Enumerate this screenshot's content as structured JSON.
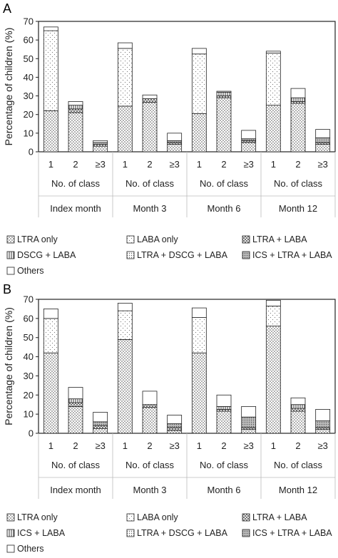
{
  "chart_data": [
    {
      "panel": "A",
      "type": "bar",
      "stacked": true,
      "ylabel": "Percentage of children (%)",
      "ylim": [
        0,
        70
      ],
      "yticks": [
        0,
        10,
        20,
        30,
        40,
        50,
        60,
        70
      ],
      "grid": false,
      "categories": [
        "1",
        "2",
        "≥3",
        "1",
        "2",
        "≥3",
        "1",
        "2",
        "≥3",
        "1",
        "2",
        "≥3"
      ],
      "category_axis_label": "No. of class",
      "groups": [
        "Index month",
        "Month 3",
        "Month 6",
        "Month 12"
      ],
      "legend_placement": "bottom",
      "series": [
        {
          "name": "LTRA only",
          "values": [
            22,
            21,
            3,
            24.5,
            26.5,
            4,
            20.5,
            29,
            5,
            25,
            26,
            4
          ],
          "pattern": "dots"
        },
        {
          "name": "LABA only",
          "values": [
            43,
            0,
            0,
            31,
            0,
            0,
            32,
            0,
            0,
            28,
            0,
            0
          ],
          "pattern": "sparse"
        },
        {
          "name": "LTRA + LABA",
          "values": [
            0,
            2,
            1,
            0,
            2,
            1,
            0,
            1,
            1,
            0,
            1,
            1
          ],
          "pattern": "cross"
        },
        {
          "name": "DSCG + LABA",
          "values": [
            0,
            2,
            0,
            0,
            0,
            0,
            0,
            2,
            0,
            0,
            2,
            0
          ],
          "pattern": "vlines"
        },
        {
          "name": "LTRA + DSCG + LABA",
          "values": [
            0,
            0,
            0,
            0,
            0,
            0,
            0,
            0,
            0,
            0,
            0,
            0
          ],
          "pattern": "fine"
        },
        {
          "name": "ICS + LTRA + LABA",
          "values": [
            0,
            0,
            1,
            0,
            0,
            1,
            0,
            0,
            1,
            0,
            0,
            2.5
          ],
          "pattern": "fine-grey"
        },
        {
          "name": "Others",
          "values": [
            2,
            2,
            1,
            3,
            2,
            4,
            3,
            0.5,
            4.5,
            1,
            5,
            4.5
          ],
          "pattern": "white"
        }
      ]
    },
    {
      "panel": "B",
      "type": "bar",
      "stacked": true,
      "ylabel": "Percentage of children (%)",
      "ylim": [
        0,
        70
      ],
      "yticks": [
        0,
        10,
        20,
        30,
        40,
        50,
        60,
        70
      ],
      "grid": false,
      "categories": [
        "1",
        "2",
        "≥3",
        "1",
        "2",
        "≥3",
        "1",
        "2",
        "≥3",
        "1",
        "2",
        "≥3"
      ],
      "category_axis_label": "No. of class",
      "groups": [
        "Index month",
        "Month 3",
        "Month 6",
        "Month 12"
      ],
      "legend_placement": "bottom",
      "series": [
        {
          "name": "LTRA only",
          "values": [
            42,
            14,
            2.5,
            49,
            13.5,
            1.5,
            42,
            11.5,
            2,
            56,
            11.5,
            2
          ],
          "pattern": "dots"
        },
        {
          "name": "LABA only",
          "values": [
            18,
            0,
            0,
            15,
            0,
            0,
            18.5,
            0,
            0,
            10.5,
            0,
            0
          ],
          "pattern": "sparse"
        },
        {
          "name": "LTRA + LABA",
          "values": [
            0,
            2,
            1.5,
            0,
            1.5,
            1.5,
            0,
            1,
            1,
            0,
            1.5,
            1
          ],
          "pattern": "cross"
        },
        {
          "name": "ICS + LABA",
          "values": [
            0,
            2,
            0,
            0,
            0,
            0,
            0,
            1.5,
            0,
            0,
            2,
            0
          ],
          "pattern": "vlines"
        },
        {
          "name": "LTRA + DSCG + LABA",
          "values": [
            0,
            0,
            0,
            0,
            0,
            0,
            0,
            0,
            0,
            0,
            0,
            0
          ],
          "pattern": "fine"
        },
        {
          "name": "ICS + LTRA + LABA",
          "values": [
            0,
            0,
            2,
            0,
            0,
            2,
            0,
            0,
            5.5,
            0,
            0,
            3.5
          ],
          "pattern": "fine-grey"
        },
        {
          "name": "Others",
          "values": [
            5,
            6,
            5,
            4,
            7,
            4.5,
            5,
            6,
            5.5,
            3,
            3.5,
            6
          ],
          "pattern": "white"
        }
      ]
    }
  ]
}
